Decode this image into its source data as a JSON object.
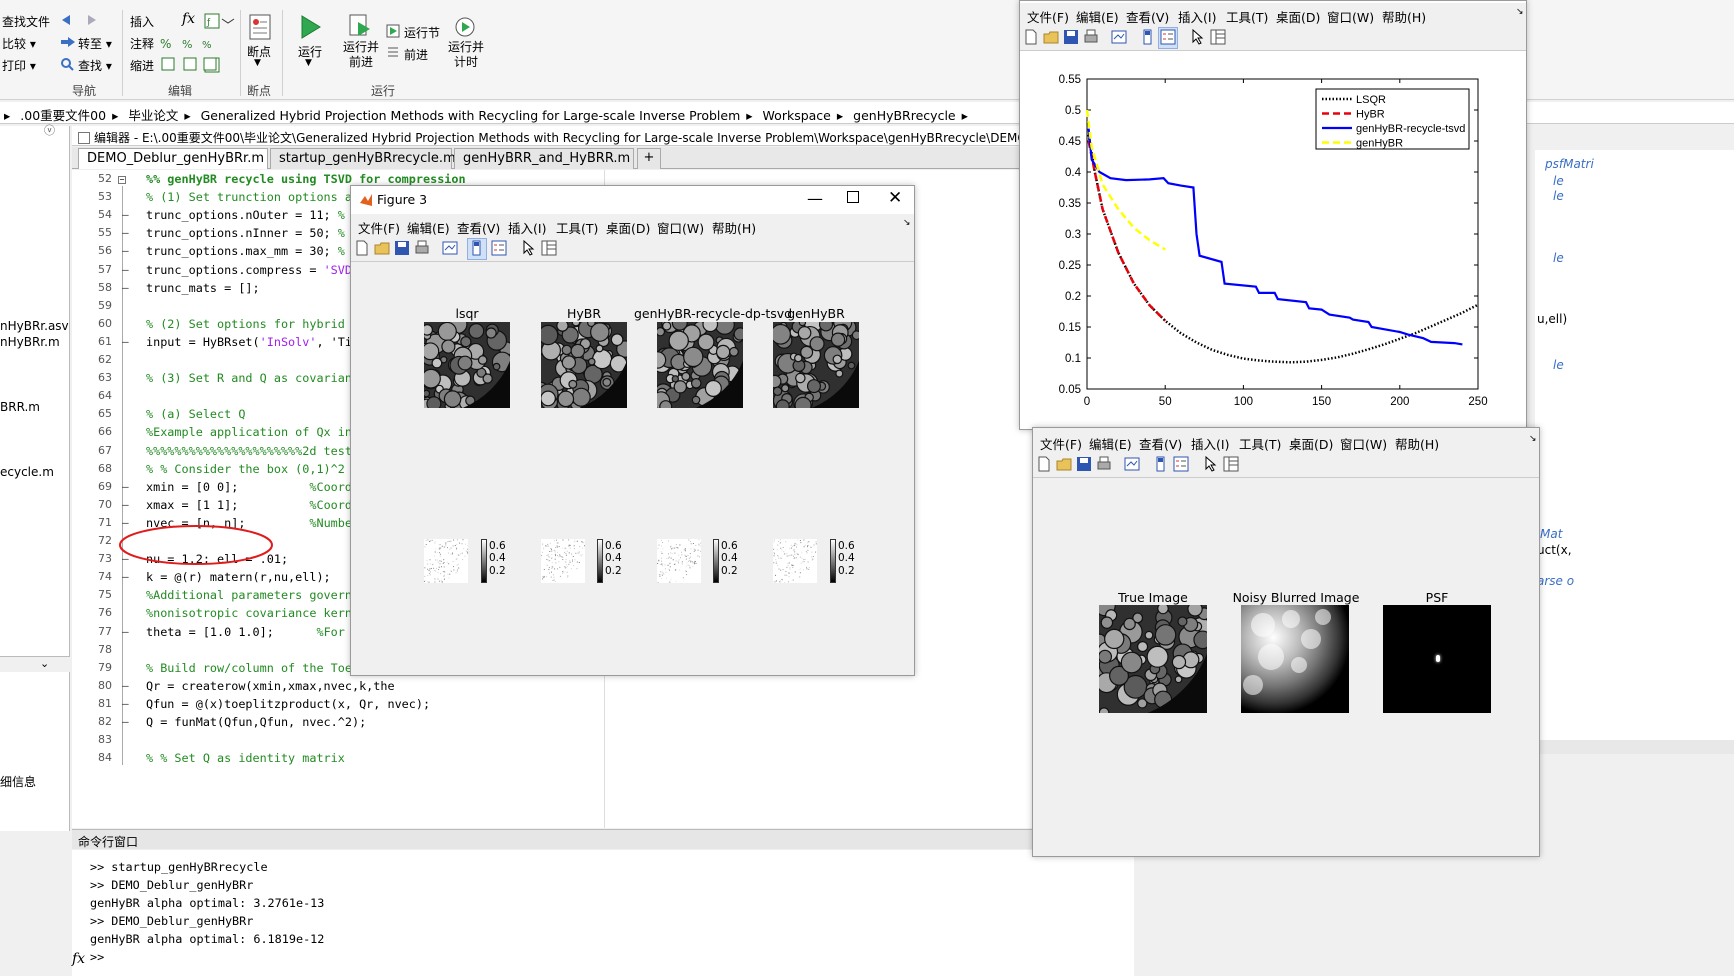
{
  "ribbon": {
    "file_items": [
      "查找文件",
      "比较 ▾",
      "打印 ▾"
    ],
    "nav_items": [
      "转至 ▾",
      "查找 ▾"
    ],
    "edit_items": [
      "插入",
      "注释",
      "缩进"
    ],
    "fx_label": "fx",
    "breakpoints_label": "断点",
    "run_label": "运行",
    "run_advance_label": "运行并\n前进",
    "run_section_label": "运行节",
    "advance_label": "前进",
    "run_time_label": "运行并\n计时",
    "groups": [
      "导航",
      "编辑",
      "断点",
      "运行"
    ]
  },
  "address": {
    "segments": [
      ".00重要文件00",
      "毕业论文",
      "Generalized Hybrid Projection Methods with Recycling for Large-scale Inverse Problem",
      "Workspace",
      "genHyBRrecycle"
    ]
  },
  "left_pane": {
    "items": [
      "nHyBRr.asv",
      "nHyBRr.m",
      "BRR.m",
      "ecycle.m",
      "细信息"
    ]
  },
  "editor": {
    "header": "编辑器 - E:\\.00重要文件00\\毕业论文\\Generalized Hybrid Projection Methods with Recycling for Large-scale Inverse Problem\\Workspace\\genHyBRrecycle\\DEMO_Deblur_genHyBRr.",
    "tabs": [
      "DEMO_Deblur_genHyBRr.m",
      "startup_genHyBRrecycle.m",
      "genHyBRR_and_HyBRR.m"
    ],
    "add_tab": "+",
    "lines": [
      {
        "n": "52",
        "dash": "",
        "t": "%% genHyBR recycle using TSVD for compression",
        "c": "cellh"
      },
      {
        "n": "53",
        "dash": "",
        "t": "% (1) Set trunction options and matrices",
        "c": "green"
      },
      {
        "n": "54",
        "dash": "–",
        "t": "trunc_options.nOuter = 11; % number",
        "c": ""
      },
      {
        "n": "55",
        "dash": "–",
        "t": "trunc_options.nInner = 50; % maximu",
        "c": ""
      },
      {
        "n": "56",
        "dash": "–",
        "t": "trunc_options.max_mm = 30; % maximu",
        "c": ""
      },
      {
        "n": "57",
        "dash": "–",
        "t": "trunc_options.compress = 'SVD';",
        "c": ""
      },
      {
        "n": "58",
        "dash": "–",
        "t": "trunc_mats = [];",
        "c": ""
      },
      {
        "n": "59",
        "dash": "",
        "t": "",
        "c": ""
      },
      {
        "n": "60",
        "dash": "",
        "t": "% (2) Set options for hybrid method",
        "c": "green"
      },
      {
        "n": "61",
        "dash": "–",
        "t": "input = HyBRset('InSolv', 'Tikhonov",
        "c": ""
      },
      {
        "n": "62",
        "dash": "",
        "t": "",
        "c": ""
      },
      {
        "n": "63",
        "dash": "",
        "t": "% (3) Set R and Q as covariance mat",
        "c": "green"
      },
      {
        "n": "64",
        "dash": "",
        "t": "",
        "c": ""
      },
      {
        "n": "65",
        "dash": "",
        "t": "% (a) Select Q",
        "c": "green"
      },
      {
        "n": "66",
        "dash": "",
        "t": "%Example application of Qx in 2D",
        "c": "green"
      },
      {
        "n": "67",
        "dash": "",
        "t": "%%%%%%%%%%%%%%%%%%%%%%2d test%%%%%%",
        "c": "green"
      },
      {
        "n": "68",
        "dash": "",
        "t": "% % Consider the box (0,1)^2",
        "c": "green"
      },
      {
        "n": "69",
        "dash": "–",
        "t": "xmin = [0 0];          %Coordinates",
        "c": ""
      },
      {
        "n": "70",
        "dash": "–",
        "t": "xmax = [1 1];          %Coordinates",
        "c": ""
      },
      {
        "n": "71",
        "dash": "–",
        "t": "nvec = [n, n];         %Number of po",
        "c": ""
      },
      {
        "n": "72",
        "dash": "",
        "t": "",
        "c": ""
      },
      {
        "n": "73",
        "dash": "–",
        "t": "nu = 1.2; ell = .01;",
        "c": ""
      },
      {
        "n": "74",
        "dash": "–",
        "t": "k = @(r) matern(r,nu,ell);",
        "c": ""
      },
      {
        "n": "75",
        "dash": "",
        "t": "%Additional parameters governing le",
        "c": "green"
      },
      {
        "n": "76",
        "dash": "",
        "t": "%nonisotropic covariance kernels",
        "c": "green"
      },
      {
        "n": "77",
        "dash": "–",
        "t": "theta = [1.0 1.0];      %For now se",
        "c": ""
      },
      {
        "n": "78",
        "dash": "",
        "t": "",
        "c": ""
      },
      {
        "n": "79",
        "dash": "",
        "t": "% Build row/column of the Toeplitz",
        "c": "green"
      },
      {
        "n": "80",
        "dash": "–",
        "t": "Qr = createrow(xmin,xmax,nvec,k,the",
        "c": ""
      },
      {
        "n": "81",
        "dash": "–",
        "t": "Qfun = @(x)toeplitzproduct(x, Qr, nvec);",
        "c": ""
      },
      {
        "n": "82",
        "dash": "–",
        "t": "Q = funMat(Qfun,Qfun, nvec.^2);",
        "c": ""
      },
      {
        "n": "83",
        "dash": "",
        "t": "",
        "c": ""
      },
      {
        "n": "84",
        "dash": "",
        "t": "% % Set Q as identity matrix",
        "c": "green"
      }
    ]
  },
  "right_edge_fragments": [
    "psfMatri",
    "le",
    "le",
    "le",
    "u,ell)",
    "le",
    "Mat",
    "uct(x,",
    "arse o"
  ],
  "command_window": {
    "title": "命令行窗口",
    "lines": [
      ">> startup_genHyBRrecycle",
      ">> DEMO_Deblur_genHyBRr",
      "genHyBR alpha optimal: 3.2761e-13",
      ">> DEMO_Deblur_genHyBRr",
      "genHyBR alpha optimal: 6.1819e-12"
    ],
    "prompt": ">>",
    "fx": "fx"
  },
  "figure3": {
    "title": "Figure 3",
    "menu": [
      "文件(F)",
      "编辑(E)",
      "查看(V)",
      "插入(I)",
      "工具(T)",
      "桌面(D)",
      "窗口(W)",
      "帮助(H)"
    ],
    "image_titles": [
      "lsqr",
      "HyBR",
      "genHyBR-recycle-dp-tsvd",
      "genHyBR"
    ],
    "colorbar_ticks": [
      "0.6",
      "0.4",
      "0.2"
    ]
  },
  "figure_plot": {
    "menu": [
      "文件(F)",
      "编辑(E)",
      "查看(V)",
      "插入(I)",
      "工具(T)",
      "桌面(D)",
      "窗口(W)",
      "帮助(H)"
    ]
  },
  "figure_images": {
    "menu": [
      "文件(F)",
      "编辑(E)",
      "查看(V)",
      "插入(I)",
      "工具(T)",
      "桌面(D)",
      "窗口(W)",
      "帮助(H)"
    ],
    "image_titles": [
      "True Image",
      "Noisy Blurred Image",
      "PSF"
    ]
  },
  "chart_data": {
    "type": "line",
    "xlim": [
      0,
      250
    ],
    "ylim": [
      0.05,
      0.55
    ],
    "x_ticks": [
      "0",
      "50",
      "100",
      "150",
      "200",
      "250"
    ],
    "y_ticks": [
      "0.05",
      "0.1",
      "0.15",
      "0.2",
      "0.25",
      "0.3",
      "0.35",
      "0.4",
      "0.45",
      "0.5",
      "0.55"
    ],
    "legend_position": "top-right",
    "grid": false,
    "series": [
      {
        "name": "LSQR",
        "color": "#000000",
        "dash": "dotted",
        "points": [
          [
            1,
            0.46
          ],
          [
            5,
            0.4
          ],
          [
            10,
            0.34
          ],
          [
            20,
            0.27
          ],
          [
            30,
            0.22
          ],
          [
            40,
            0.185
          ],
          [
            50,
            0.16
          ],
          [
            60,
            0.14
          ],
          [
            70,
            0.125
          ],
          [
            80,
            0.113
          ],
          [
            90,
            0.105
          ],
          [
            100,
            0.099
          ],
          [
            110,
            0.096
          ],
          [
            120,
            0.094
          ],
          [
            130,
            0.093
          ],
          [
            140,
            0.094
          ],
          [
            150,
            0.097
          ],
          [
            160,
            0.101
          ],
          [
            170,
            0.107
          ],
          [
            180,
            0.114
          ],
          [
            190,
            0.122
          ],
          [
            200,
            0.131
          ],
          [
            210,
            0.14
          ],
          [
            220,
            0.151
          ],
          [
            230,
            0.162
          ],
          [
            240,
            0.173
          ],
          [
            250,
            0.186
          ]
        ]
      },
      {
        "name": "HyBR",
        "color": "#e8000b",
        "dash": "dashed",
        "points": [
          [
            1,
            0.45
          ],
          [
            5,
            0.4
          ],
          [
            10,
            0.34
          ],
          [
            20,
            0.27
          ],
          [
            30,
            0.22
          ],
          [
            40,
            0.185
          ],
          [
            50,
            0.16
          ]
        ]
      },
      {
        "name": "genHyBR-recycle-tsvd",
        "color": "#0000ff",
        "dash": "solid",
        "points": [
          [
            1,
            0.47
          ],
          [
            3,
            0.42
          ],
          [
            8,
            0.4
          ],
          [
            15,
            0.39
          ],
          [
            25,
            0.387
          ],
          [
            40,
            0.388
          ],
          [
            49,
            0.39
          ],
          [
            52,
            0.382
          ],
          [
            60,
            0.378
          ],
          [
            68,
            0.375
          ],
          [
            70,
            0.3
          ],
          [
            72,
            0.265
          ],
          [
            86,
            0.255
          ],
          [
            88,
            0.22
          ],
          [
            108,
            0.215
          ],
          [
            110,
            0.205
          ],
          [
            120,
            0.205
          ],
          [
            122,
            0.195
          ],
          [
            140,
            0.19
          ],
          [
            142,
            0.18
          ],
          [
            150,
            0.178
          ],
          [
            155,
            0.17
          ],
          [
            168,
            0.165
          ],
          [
            170,
            0.162
          ],
          [
            180,
            0.158
          ],
          [
            182,
            0.15
          ],
          [
            200,
            0.142
          ],
          [
            205,
            0.138
          ],
          [
            215,
            0.132
          ],
          [
            220,
            0.126
          ],
          [
            235,
            0.124
          ],
          [
            240,
            0.122
          ]
        ]
      },
      {
        "name": "genHyBR",
        "color": "#ffff00",
        "dash": "dashed",
        "points": [
          [
            0,
            0.5
          ],
          [
            3,
            0.44
          ],
          [
            10,
            0.38
          ],
          [
            20,
            0.34
          ],
          [
            30,
            0.31
          ],
          [
            40,
            0.29
          ],
          [
            50,
            0.275
          ]
        ]
      }
    ]
  }
}
